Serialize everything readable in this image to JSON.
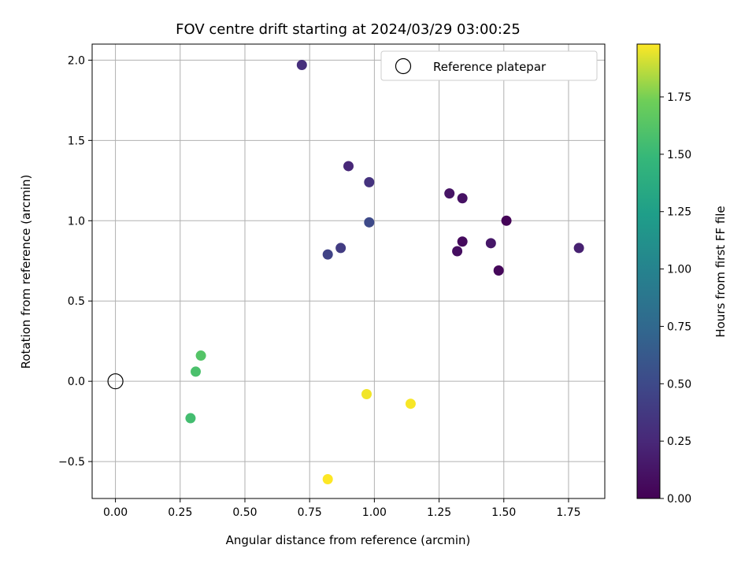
{
  "chart_data": {
    "type": "scatter",
    "title": "FOV centre drift starting at 2024/03/29 03:00:25",
    "xlabel": "Angular distance from reference (arcmin)",
    "ylabel": "Rotation from reference (arcmin)",
    "xlim": [
      -0.09,
      1.89
    ],
    "ylim": [
      -0.73,
      2.1
    ],
    "xticks": [
      "0.00",
      "0.25",
      "0.50",
      "0.75",
      "1.00",
      "1.25",
      "1.50",
      "1.75"
    ],
    "xtick_values": [
      0,
      0.25,
      0.5,
      0.75,
      1.0,
      1.25,
      1.5,
      1.75
    ],
    "yticks": [
      "−0.5",
      "0.0",
      "0.5",
      "1.0",
      "1.5",
      "2.0"
    ],
    "ytick_values": [
      -0.5,
      0,
      0.5,
      1.0,
      1.5,
      2.0
    ],
    "grid": true,
    "legend": {
      "label": "Reference platepar",
      "position": "top-right",
      "marker": "open-circle"
    },
    "reference_point": {
      "x": 0.0,
      "y": 0.0
    },
    "colorbar": {
      "label": "Hours from first FF file",
      "colormap": "viridis",
      "range": [
        0,
        1.98
      ],
      "ticks": [
        "0.00",
        "0.25",
        "0.50",
        "0.75",
        "1.00",
        "1.25",
        "1.50",
        "1.75"
      ],
      "tick_values": [
        0,
        0.25,
        0.5,
        0.75,
        1.0,
        1.25,
        1.5,
        1.75
      ]
    },
    "points": [
      {
        "x": 1.51,
        "y": 1.0,
        "hours": 0.02
      },
      {
        "x": 1.48,
        "y": 0.69,
        "hours": 0.04
      },
      {
        "x": 1.34,
        "y": 0.87,
        "hours": 0.06
      },
      {
        "x": 1.32,
        "y": 0.81,
        "hours": 0.08
      },
      {
        "x": 1.34,
        "y": 1.14,
        "hours": 0.1
      },
      {
        "x": 1.29,
        "y": 1.17,
        "hours": 0.12
      },
      {
        "x": 1.45,
        "y": 0.86,
        "hours": 0.14
      },
      {
        "x": 1.79,
        "y": 0.83,
        "hours": 0.2
      },
      {
        "x": 0.9,
        "y": 1.34,
        "hours": 0.25
      },
      {
        "x": 0.72,
        "y": 1.97,
        "hours": 0.3
      },
      {
        "x": 0.98,
        "y": 1.24,
        "hours": 0.33
      },
      {
        "x": 0.87,
        "y": 0.83,
        "hours": 0.4
      },
      {
        "x": 0.82,
        "y": 0.79,
        "hours": 0.45
      },
      {
        "x": 0.98,
        "y": 0.99,
        "hours": 0.5
      },
      {
        "x": 0.33,
        "y": 0.16,
        "hours": 1.62
      },
      {
        "x": 0.31,
        "y": 0.06,
        "hours": 1.58
      },
      {
        "x": 0.29,
        "y": -0.23,
        "hours": 1.55
      },
      {
        "x": 0.97,
        "y": -0.08,
        "hours": 1.96
      },
      {
        "x": 1.14,
        "y": -0.14,
        "hours": 1.97
      },
      {
        "x": 0.82,
        "y": -0.61,
        "hours": 1.98
      }
    ]
  }
}
